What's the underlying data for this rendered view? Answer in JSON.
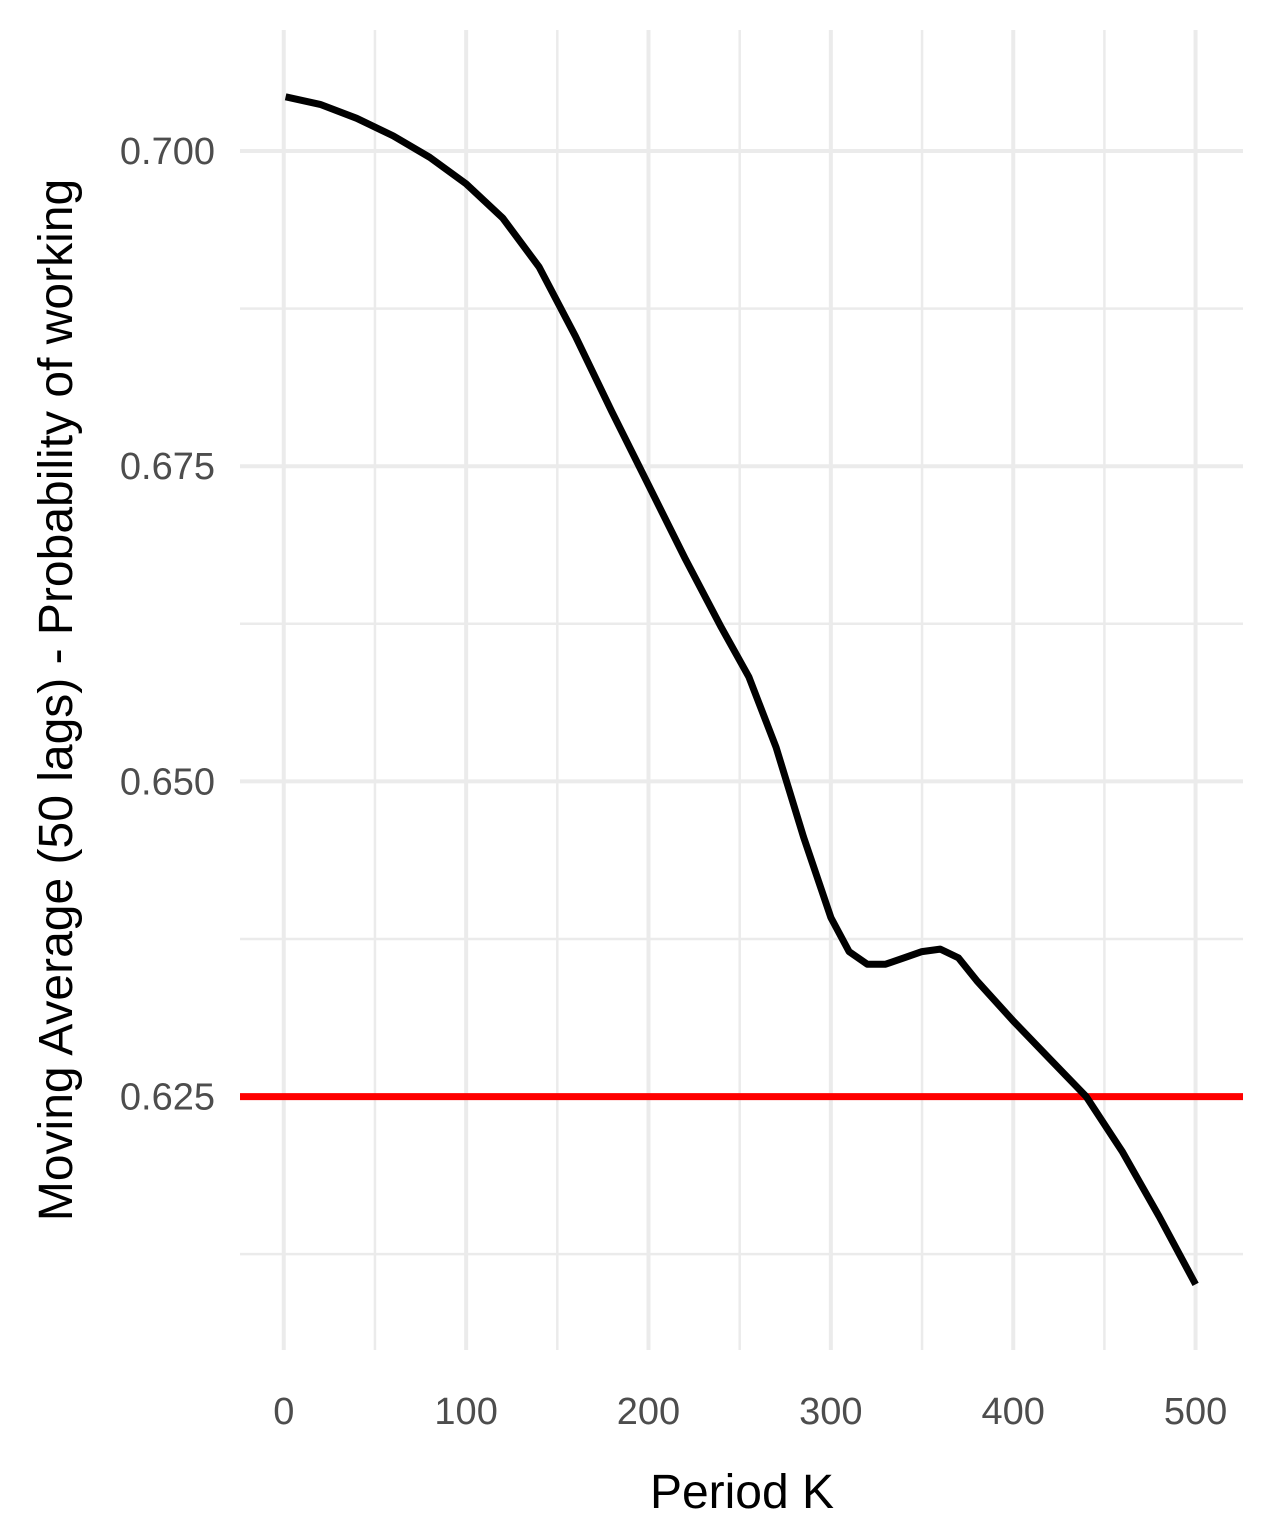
{
  "chart_data": {
    "type": "line",
    "title": "",
    "xlabel": "Period K",
    "ylabel": "Moving Average (50 lags) - Probability of working",
    "xlim": [
      -24,
      526
    ],
    "ylim": [
      0.6049,
      0.7096
    ],
    "x_ticks": [
      0,
      100,
      200,
      300,
      400,
      500
    ],
    "x_tick_labels": [
      "0",
      "100",
      "200",
      "300",
      "400",
      "500"
    ],
    "y_ticks": [
      0.625,
      0.65,
      0.675,
      0.7
    ],
    "y_tick_labels": [
      "0.625",
      "0.650",
      "0.675",
      "0.700"
    ],
    "grid": true,
    "series": [
      {
        "color": "#000000",
        "x": [
          1,
          20,
          40,
          60,
          80,
          100,
          120,
          140,
          160,
          180,
          200,
          220,
          240,
          255,
          270,
          285,
          300,
          310,
          320,
          330,
          340,
          350,
          360,
          370,
          380,
          400,
          420,
          440,
          460,
          480,
          500
        ],
        "y": [
          0.7043,
          0.7037,
          0.7026,
          0.7012,
          0.6995,
          0.6974,
          0.6947,
          0.6908,
          0.6853,
          0.6793,
          0.6735,
          0.6677,
          0.6622,
          0.6583,
          0.6527,
          0.6456,
          0.6392,
          0.6365,
          0.6355,
          0.6355,
          0.636,
          0.6365,
          0.6367,
          0.636,
          0.6342,
          0.631,
          0.628,
          0.625,
          0.6206,
          0.6155,
          0.6101
        ]
      }
    ],
    "reference_line": {
      "y": 0.625,
      "color": "#ff0000"
    }
  }
}
